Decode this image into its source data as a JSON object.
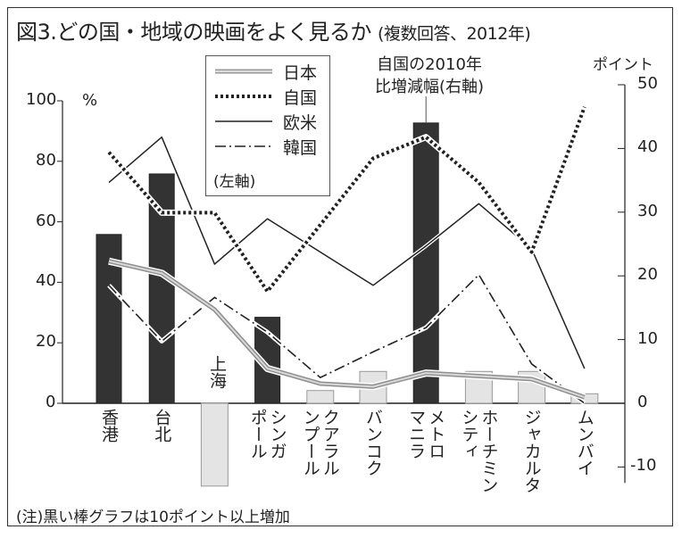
{
  "chart_data": {
    "type": "bar+line",
    "title": "図3.どの国・地域の映画をよく見るか",
    "subtitle": "(複数回答、2012年)",
    "categories": [
      "香港",
      "台北",
      "上海",
      "シンガ\nポール",
      "クアラル\nンプール",
      "バンコク",
      "メトロ\nマニラ",
      "ホーチミン\nシティ",
      "ジャカルタ",
      "ムンバイ"
    ],
    "left_axis": {
      "unit": "%",
      "range": [
        0,
        100
      ],
      "ticks": [
        "0",
        "20",
        "40",
        "60",
        "80",
        "100"
      ]
    },
    "right_axis": {
      "unit": "ポイント",
      "range": [
        -10,
        50
      ],
      "ticks": [
        "-10",
        "0",
        "10",
        "20",
        "30",
        "40",
        "50"
      ]
    },
    "bars": {
      "name": "自国の2010年比増減幅(右軸)",
      "axis": "right",
      "values": [
        26.5,
        36,
        -13,
        13.5,
        2,
        5,
        44,
        5,
        5,
        1.5
      ],
      "highlight_threshold": 10
    },
    "series": [
      {
        "name": "日本",
        "axis": "left",
        "style": "gray-double",
        "values": [
          47,
          43,
          31,
          11.5,
          6.5,
          5.5,
          10,
          9,
          8,
          2
        ]
      },
      {
        "name": "自国",
        "axis": "left",
        "style": "dotted",
        "values": [
          83,
          63,
          63,
          37,
          59,
          81,
          88,
          73,
          50,
          98
        ]
      },
      {
        "name": "欧米",
        "axis": "left",
        "style": "solid",
        "values": [
          73,
          88,
          46,
          61,
          50,
          39,
          52,
          66,
          51,
          11.5
        ]
      },
      {
        "name": "韓国",
        "axis": "left",
        "style": "dash-dot",
        "values": [
          39,
          20.5,
          35,
          23.5,
          8.5,
          17,
          25,
          42.5,
          13,
          0
        ]
      }
    ],
    "legend_axis_note": "(左軸)",
    "legend": "top-left",
    "annotation": "自国の2010年\n比増減幅(右軸)",
    "footnote": "(注)黒い棒グラフは10ポイント以上増加"
  },
  "colors": {
    "bar_dark": "#333333",
    "bar_light": "#e4e4e4",
    "japan": "#9a9a9a"
  }
}
